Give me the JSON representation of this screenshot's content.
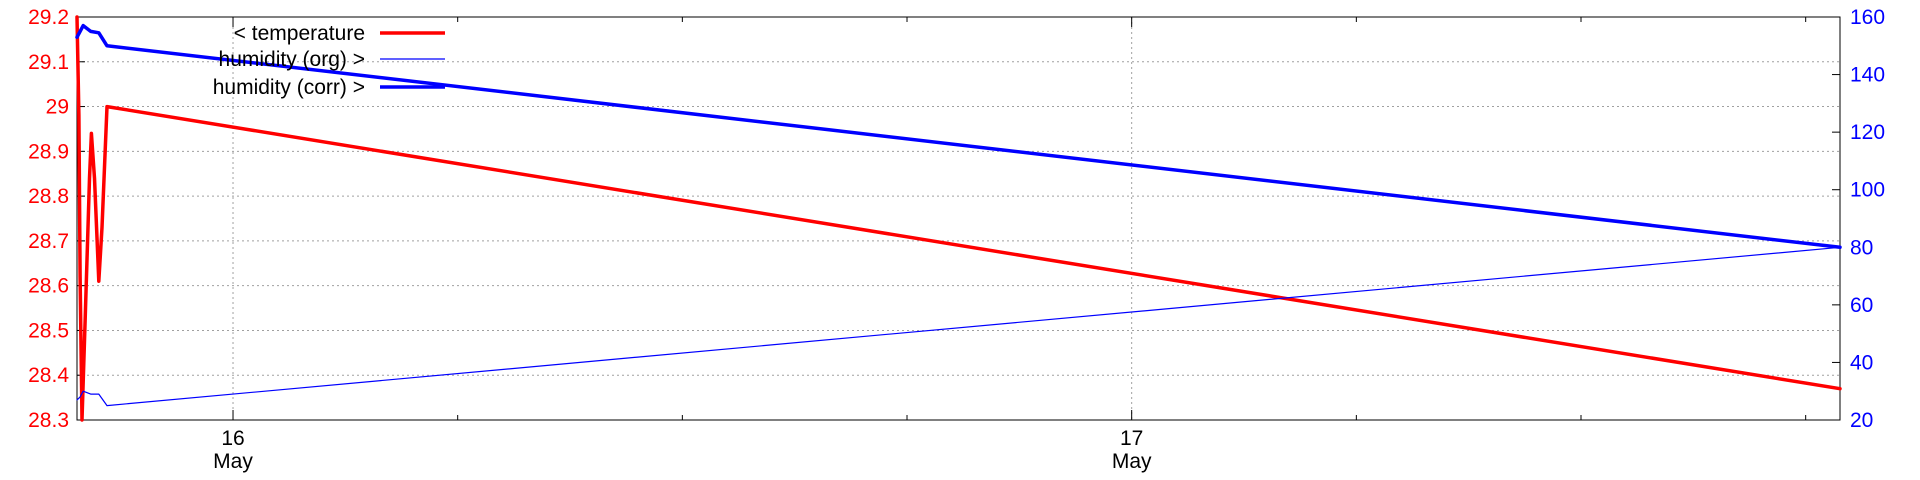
{
  "chart_data": {
    "type": "line",
    "x_axis": {
      "start": "2024-05-15T19:50",
      "end": "2024-05-17T18:55",
      "ticks": [
        {
          "day": "16",
          "month": "May",
          "at": "2024-05-16T00:00"
        },
        {
          "day": "17",
          "month": "May",
          "at": "2024-05-17T00:00"
        }
      ],
      "minor_ticks": [
        "2024-05-16T06:00",
        "2024-05-16T12:00",
        "2024-05-16T18:00",
        "2024-05-17T06:00",
        "2024-05-17T12:00",
        "2024-05-17T18:00"
      ]
    },
    "y_left": {
      "ylim": [
        28.3,
        29.2
      ],
      "ticks": [
        "28.3",
        "28.4",
        "28.5",
        "28.6",
        "28.7",
        "28.8",
        "28.9",
        "29",
        "29.1",
        "29.2"
      ],
      "color": "#ff0000"
    },
    "y_right": {
      "ylim": [
        20,
        160
      ],
      "ticks": [
        "20",
        "40",
        "60",
        "80",
        "100",
        "120",
        "140",
        "160"
      ],
      "color": "#0000ff"
    },
    "grid": true,
    "legend_position": "top-left",
    "series": [
      {
        "name": "< temperature",
        "axis": "left",
        "color": "#ff0000",
        "width": "thick",
        "points": [
          [
            "2024-05-15T19:50",
            29.2
          ],
          [
            "2024-05-15T19:53",
            28.98
          ],
          [
            "2024-05-15T19:55",
            28.62
          ],
          [
            "2024-05-15T19:58",
            28.3
          ],
          [
            "2024-05-15T20:03",
            28.52
          ],
          [
            "2024-05-15T20:10",
            28.84
          ],
          [
            "2024-05-15T20:13",
            28.94
          ],
          [
            "2024-05-15T20:18",
            28.84
          ],
          [
            "2024-05-15T20:25",
            28.61
          ],
          [
            "2024-05-15T20:30",
            28.73
          ],
          [
            "2024-05-15T20:38",
            29.0
          ],
          [
            "2024-05-17T18:55",
            28.37
          ]
        ]
      },
      {
        "name": "humidity (org) >",
        "axis": "right",
        "color": "#0000ff",
        "width": "thin",
        "points": [
          [
            "2024-05-15T19:50",
            27
          ],
          [
            "2024-05-15T19:55",
            28
          ],
          [
            "2024-05-15T20:00",
            30
          ],
          [
            "2024-05-15T20:12",
            29
          ],
          [
            "2024-05-15T20:25",
            29
          ],
          [
            "2024-05-15T20:38",
            25
          ],
          [
            "2024-05-17T18:55",
            80
          ]
        ]
      },
      {
        "name": "humidity (corr) >",
        "axis": "right",
        "color": "#0000ff",
        "width": "thick",
        "points": [
          [
            "2024-05-15T19:50",
            153
          ],
          [
            "2024-05-15T19:55",
            155
          ],
          [
            "2024-05-15T20:00",
            157
          ],
          [
            "2024-05-15T20:12",
            155
          ],
          [
            "2024-05-15T20:25",
            154.5
          ],
          [
            "2024-05-15T20:38",
            150
          ],
          [
            "2024-05-17T18:55",
            80
          ]
        ]
      }
    ]
  }
}
